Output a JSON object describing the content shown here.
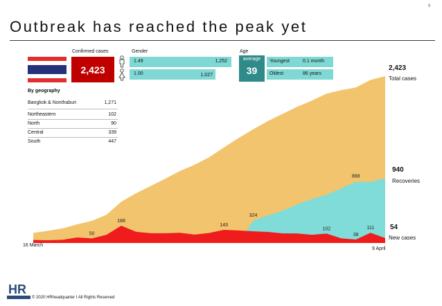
{
  "page_number": "9",
  "title": "Outbreak has reached the peak yet",
  "colors": {
    "total_area": "#f2c46d",
    "recoveries_area": "#7fdcd8",
    "new_cases_area": "#ee1c1c",
    "confirmed_box": "#c00000",
    "average_box": "#2f8a8a",
    "gender_bar": "#7fd8d4"
  },
  "panel": {
    "confirmed_label": "Confirmed cases",
    "confirmed_value": "2,423",
    "gender_label": "Gender",
    "gender_male_ratio": "1.49",
    "gender_male_count": "1,252",
    "gender_female_ratio": "1.00",
    "gender_female_count": "1,027",
    "age_label": "Age",
    "average_label": "average",
    "average_value": "39",
    "youngest_label": "Youngest",
    "youngest_value": "0.1 month",
    "oldest_label": "Oldest",
    "oldest_value": "86  years",
    "icons": [
      "thai-flag-icon",
      "male-person-icon",
      "female-person-icon"
    ]
  },
  "geography": {
    "heading": "By geography",
    "rows": [
      {
        "label": "Bangkok & Nonthaburi",
        "value": "1,271"
      },
      {
        "label": "Northeastern",
        "value": "102"
      },
      {
        "label": "North",
        "value": "90"
      },
      {
        "label": "Central",
        "value": "339"
      },
      {
        "label": "South",
        "value": "447"
      }
    ]
  },
  "side_labels": {
    "total_value": "2,423",
    "total_label": "Total cases",
    "recoveries_value": "940",
    "recoveries_label": "Recoveries",
    "new_value": "54",
    "new_label": "New cases"
  },
  "footer": "© 2020 HRheadquarter I  All Rights Reserved",
  "logo_text": "HR",
  "chart_data": {
    "type": "area",
    "x_start_label": "16 March",
    "x_end_label": "9 April",
    "x": [
      "16 Mar",
      "17 Mar",
      "18 Mar",
      "19 Mar",
      "20 Mar",
      "21 Mar",
      "22 Mar",
      "23 Mar",
      "24 Mar",
      "25 Mar",
      "26 Mar",
      "27 Mar",
      "28 Mar",
      "29 Mar",
      "30 Mar",
      "31 Mar",
      "1 Apr",
      "2 Apr",
      "3 Apr",
      "4 Apr",
      "5 Apr",
      "6 Apr",
      "7 Apr",
      "8 Apr",
      "9 Apr"
    ],
    "series": [
      {
        "name": "Total cases",
        "values": [
          147,
          177,
          212,
          272,
          322,
          411,
          599,
          721,
          827,
          934,
          1045,
          1136,
          1245,
          1388,
          1524,
          1651,
          1771,
          1875,
          1978,
          2067,
          2169,
          2220,
          2258,
          2369,
          2423
        ]
      },
      {
        "name": "Recoveries",
        "values": [
          0,
          0,
          0,
          0,
          0,
          0,
          0,
          0,
          0,
          0,
          0,
          0,
          0,
          0,
          0,
          324,
          400,
          470,
          560,
          640,
          700,
          793,
          888,
          888,
          940
        ]
      },
      {
        "name": "New cases",
        "values": [
          33,
          30,
          35,
          60,
          50,
          89,
          188,
          122,
          106,
          106,
          111,
          91,
          109,
          143,
          136,
          127,
          120,
          104,
          103,
          89,
          102,
          51,
          38,
          111,
          54
        ]
      }
    ],
    "point_labels": [
      {
        "series": "New cases",
        "x": "20 Mar",
        "value": "50"
      },
      {
        "series": "New cases",
        "x": "22 Mar",
        "value": "188"
      },
      {
        "series": "New cases",
        "x": "29 Mar",
        "value": "143"
      },
      {
        "series": "Recoveries",
        "x": "31 Mar",
        "value": "324"
      },
      {
        "series": "New cases",
        "x": "5 Apr",
        "value": "102"
      },
      {
        "series": "New cases",
        "x": "7 Apr",
        "value": "38"
      },
      {
        "series": "New cases",
        "x": "8 Apr",
        "value": "111"
      },
      {
        "series": "Recoveries",
        "x": "7 Apr",
        "value": "888"
      }
    ],
    "ylim": [
      0,
      2423
    ]
  }
}
